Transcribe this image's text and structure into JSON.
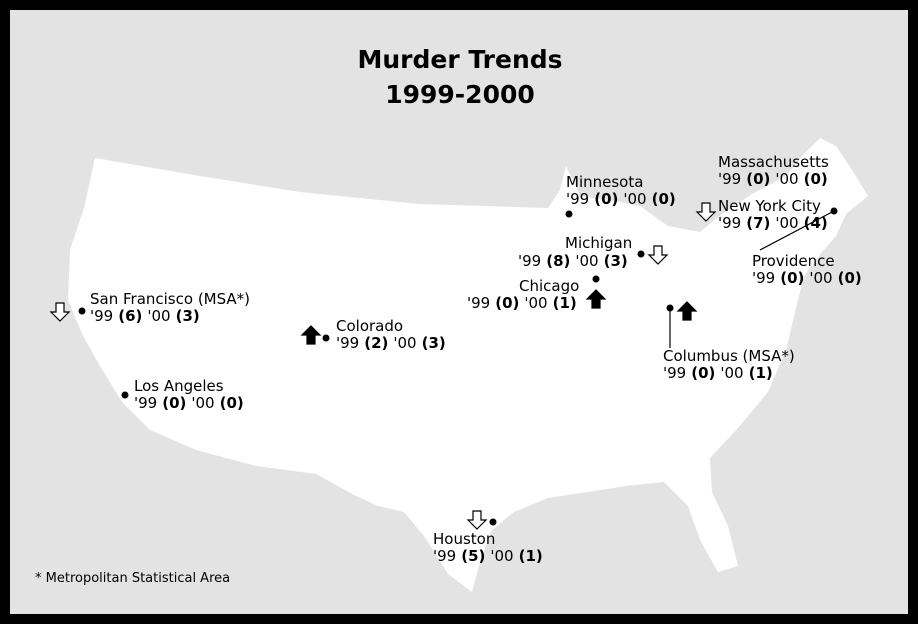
{
  "title": [
    "Murder Trends",
    "1999-2000"
  ],
  "years": [
    "'99",
    "'00"
  ],
  "locations": [
    {
      "name": "San Francisco (MSA*)",
      "values": [
        6,
        3
      ],
      "value_labels": [
        "(6)",
        "(3)"
      ],
      "trend": "down"
    },
    {
      "name": "Los Angeles",
      "values": [
        0,
        0
      ],
      "value_labels": [
        "(0)",
        "(0)"
      ]
    },
    {
      "name": "Colorado",
      "values": [
        2,
        3
      ],
      "value_labels": [
        "(2)",
        "(3)"
      ],
      "trend": "up"
    },
    {
      "name": "Minnesota",
      "values": [
        0,
        0
      ],
      "value_labels": [
        "(0)",
        "(0)"
      ]
    },
    {
      "name": "Michigan",
      "values": [
        8,
        3
      ],
      "value_labels": [
        "(8)",
        "(3)"
      ],
      "trend": "down"
    },
    {
      "name": "Chicago",
      "values": [
        0,
        1
      ],
      "value_labels": [
        "(0)",
        "(1)"
      ],
      "trend": "up"
    },
    {
      "name": "Columbus (MSA*)",
      "values": [
        0,
        1
      ],
      "value_labels": [
        "(0)",
        "(1)"
      ],
      "trend": "up"
    },
    {
      "name": "Massachusetts",
      "values": [
        0,
        0
      ],
      "value_labels": [
        "(0)",
        "(0)"
      ]
    },
    {
      "name": "New York City",
      "values": [
        7,
        4
      ],
      "value_labels": [
        "(7)",
        "(4)"
      ],
      "trend": "down"
    },
    {
      "name": "Providence",
      "values": [
        0,
        0
      ],
      "value_labels": [
        "(0)",
        "(0)"
      ]
    },
    {
      "name": "Houston",
      "values": [
        5,
        1
      ],
      "value_labels": [
        "(5)",
        "(1)"
      ],
      "trend": "down"
    }
  ],
  "footnote": "* Metropolitan Statistical Area"
}
